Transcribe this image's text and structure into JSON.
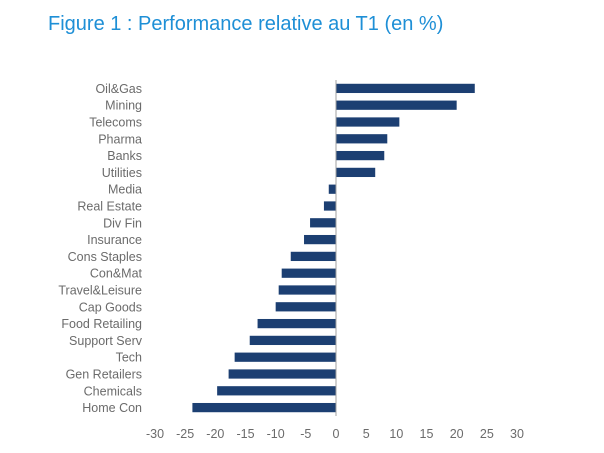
{
  "chart_data": {
    "type": "bar",
    "orientation": "horizontal",
    "title": "Figure 1 : Performance relative au T1 (en %)",
    "categories": [
      "Oil&Gas",
      "Mining",
      "Telecoms",
      "Pharma",
      "Banks",
      "Utilities",
      "Media",
      "Real Estate",
      "Div Fin",
      "Insurance",
      "Cons Staples",
      "Con&Mat",
      "Travel&Leisure",
      "Cap Goods",
      "Food Retailing",
      "Support Serv",
      "Tech",
      "Gen Retailers",
      "Chemicals",
      "Home Con"
    ],
    "values": [
      23,
      20,
      10.5,
      8.5,
      8,
      6.5,
      -1.2,
      -2,
      -4.3,
      -5.3,
      -7.5,
      -9,
      -9.5,
      -10,
      -13,
      -14.3,
      -16.8,
      -17.8,
      -19.7,
      -23.8
    ],
    "xlim": [
      -30,
      30
    ],
    "xticks": [
      -30,
      -25,
      -20,
      -15,
      -10,
      -5,
      0,
      5,
      10,
      15,
      20,
      25,
      30
    ],
    "grid": false,
    "legend": "none",
    "bar_color": "#1c3f72"
  }
}
